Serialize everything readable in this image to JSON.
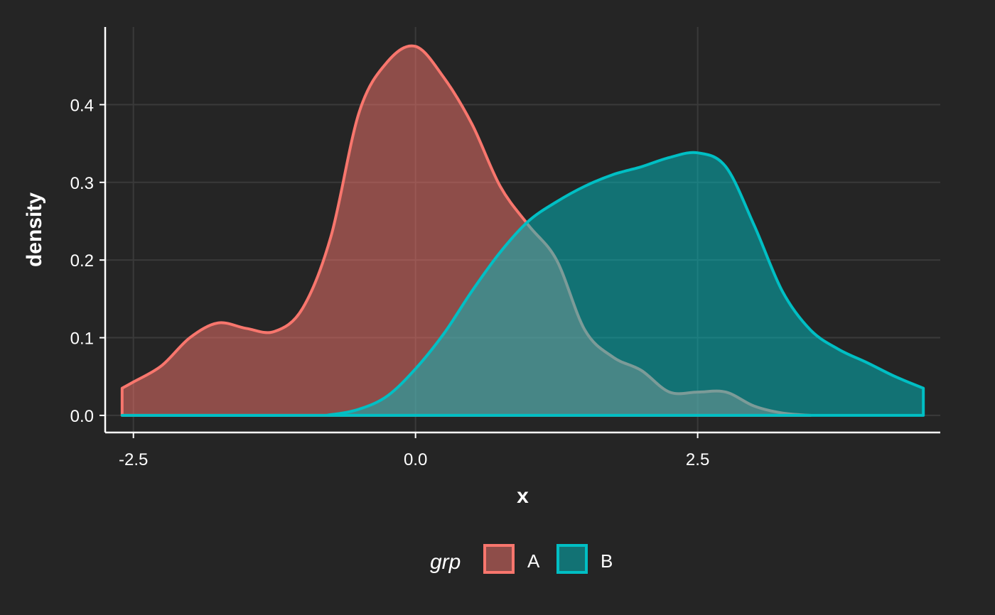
{
  "chart_data": {
    "type": "area",
    "subtype": "density",
    "title": "",
    "xlabel": "x",
    "ylabel": "density",
    "xlim": [
      -2.75,
      4.65
    ],
    "ylim": [
      -0.022,
      0.5
    ],
    "x_ticks": [
      -2.5,
      0.0,
      2.5
    ],
    "x_tick_labels": [
      "-2.5",
      "0.0",
      "2.5"
    ],
    "y_ticks": [
      0.0,
      0.1,
      0.2,
      0.3,
      0.4
    ],
    "y_tick_labels": [
      "0.0",
      "0.1",
      "0.2",
      "0.3",
      "0.4"
    ],
    "grid": true,
    "legend": {
      "title": "grp",
      "position": "bottom"
    },
    "series": [
      {
        "name": "A",
        "line_color": "#F8766D",
        "fill_color": "#8E4E4B",
        "x": [
          -2.6,
          -2.5,
          -2.25,
          -2.0,
          -1.75,
          -1.5,
          -1.25,
          -1.0,
          -0.75,
          -0.5,
          -0.25,
          0.0,
          0.25,
          0.5,
          0.75,
          1.0,
          1.25,
          1.5,
          1.75,
          2.0,
          2.25,
          2.5,
          2.75,
          3.0,
          3.25,
          3.5
        ],
        "y": [
          0.035,
          0.043,
          0.064,
          0.1,
          0.119,
          0.112,
          0.108,
          0.138,
          0.23,
          0.39,
          0.455,
          0.475,
          0.435,
          0.375,
          0.295,
          0.245,
          0.2,
          0.11,
          0.075,
          0.058,
          0.03,
          0.03,
          0.03,
          0.012,
          0.003,
          0.0
        ]
      },
      {
        "name": "B",
        "line_color": "#00BFC4",
        "fill_color": "#147676",
        "x": [
          -2.6,
          -1.0,
          -0.75,
          -0.5,
          -0.25,
          0.0,
          0.25,
          0.5,
          0.75,
          1.0,
          1.25,
          1.5,
          1.75,
          2.0,
          2.25,
          2.5,
          2.75,
          3.0,
          3.25,
          3.5,
          3.75,
          4.0,
          4.25,
          4.5
        ],
        "y": [
          0.0,
          0.0,
          0.001,
          0.008,
          0.025,
          0.06,
          0.105,
          0.16,
          0.21,
          0.25,
          0.275,
          0.295,
          0.31,
          0.32,
          0.332,
          0.338,
          0.32,
          0.245,
          0.16,
          0.11,
          0.085,
          0.068,
          0.05,
          0.035
        ]
      }
    ]
  }
}
